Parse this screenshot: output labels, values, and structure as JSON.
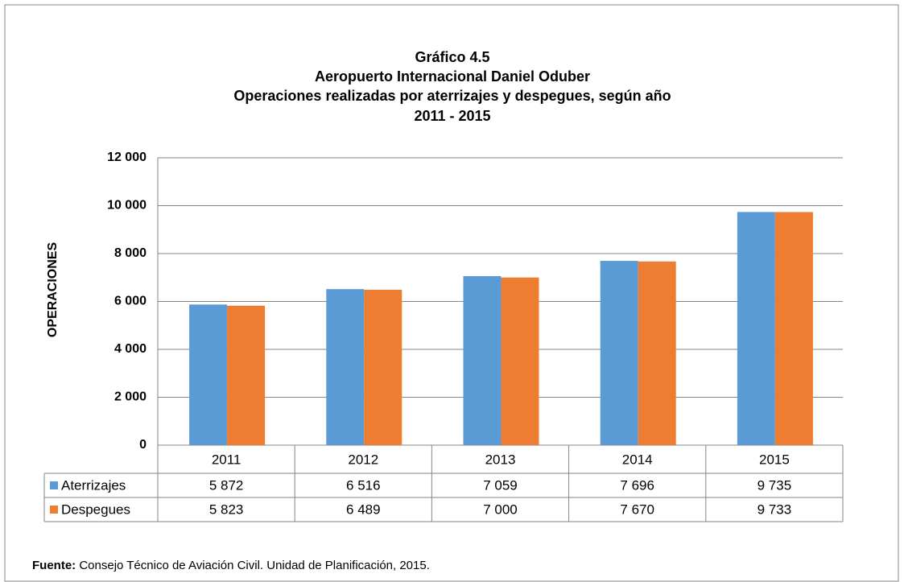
{
  "chart_data": {
    "type": "bar",
    "title": [
      "Gráfico 4.5",
      "Aeropuerto Internacional Daniel Oduber",
      "Operaciones realizadas por aterrizajes y despegues, según año",
      "2011 - 2015"
    ],
    "y_label": "OPERACIONES",
    "categories": [
      "2011",
      "2012",
      "2013",
      "2014",
      "2015"
    ],
    "series": [
      {
        "name": "Aterrizajes",
        "color": "#5b9bd5",
        "values": [
          5872,
          6516,
          7059,
          7696,
          9735
        ],
        "value_labels": [
          "5 872",
          "6 516",
          "7 059",
          "7 696",
          "9 735"
        ]
      },
      {
        "name": "Despegues",
        "color": "#ed7d31",
        "values": [
          5823,
          6489,
          7000,
          7670,
          9733
        ],
        "value_labels": [
          "5 823",
          "6 489",
          "7 000",
          "7 670",
          "9 733"
        ]
      }
    ],
    "ylim": [
      0,
      12000
    ],
    "yticks": [
      0,
      {
        "value": 2000,
        "label": "2 000"
      },
      {
        "value": 4000,
        "label": "4 000"
      },
      {
        "value": 6000,
        "label": "6 000"
      },
      {
        "value": 8000,
        "label": "8 000"
      },
      {
        "value": 10000,
        "label": "10 000"
      },
      {
        "value": 12000,
        "label": "12 000"
      }
    ],
    "grid": true
  },
  "source": {
    "label": "Fuente:",
    "text": " Consejo Técnico de Aviación Civil. Unidad de Planificación, 2015."
  }
}
